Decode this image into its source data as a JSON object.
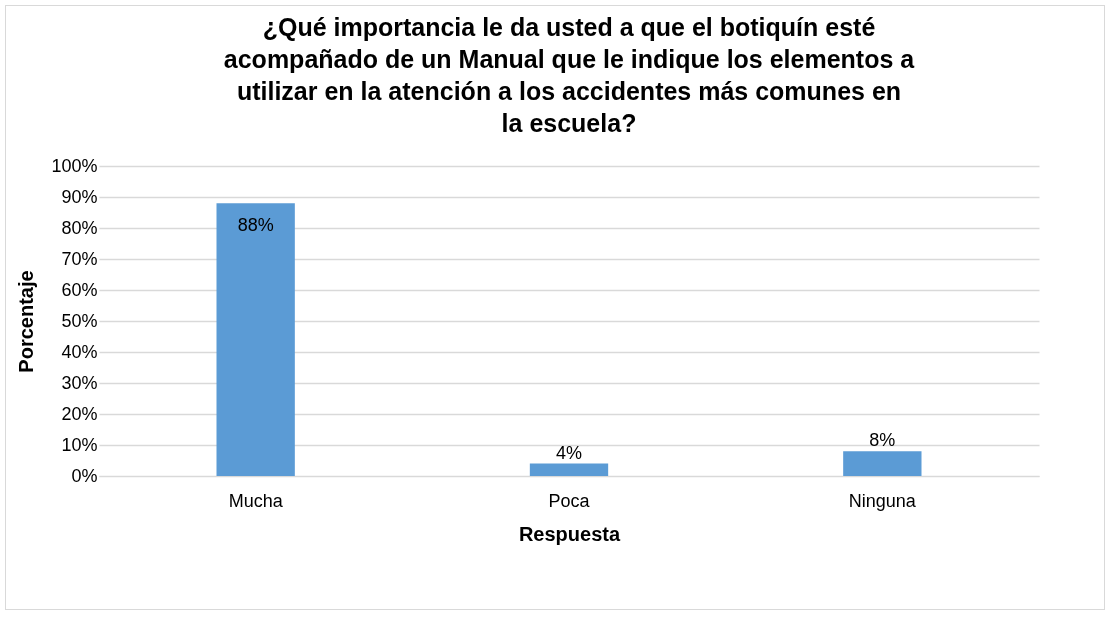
{
  "chart_data": {
    "type": "bar",
    "title": "¿Qué importancia le da usted a que el botiquín esté acompañado de un Manual que le indique los elementos a utilizar en la atención a los accidentes más comunes en la escuela?",
    "xlabel": "Respuesta",
    "ylabel": "Porcentaje",
    "categories": [
      "Mucha",
      "Poca",
      "Ninguna"
    ],
    "values": [
      88,
      4,
      8
    ],
    "value_labels": [
      "88%",
      "4%",
      "8%"
    ],
    "color": "#5b9bd5",
    "ylim": [
      0,
      100
    ],
    "yticks": [
      {
        "value": 0,
        "label": "0%"
      },
      {
        "value": 10,
        "label": "10%"
      },
      {
        "value": 20,
        "label": "20%"
      },
      {
        "value": 30,
        "label": "30%"
      },
      {
        "value": 40,
        "label": "40%"
      },
      {
        "value": 50,
        "label": "50%"
      },
      {
        "value": 60,
        "label": "60%"
      },
      {
        "value": 70,
        "label": "70%"
      },
      {
        "value": 80,
        "label": "80%"
      },
      {
        "value": 90,
        "label": "90%"
      },
      {
        "value": 100,
        "label": "100%"
      }
    ],
    "grid": "y"
  }
}
